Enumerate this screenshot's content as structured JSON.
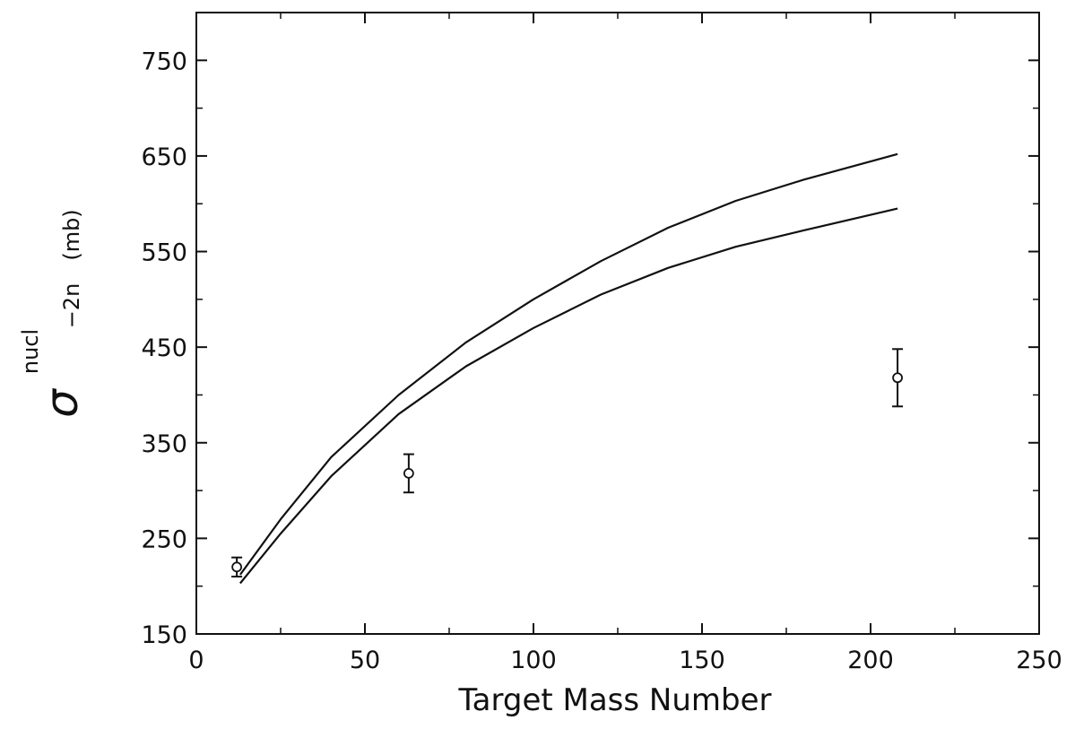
{
  "chart_data": {
    "type": "line",
    "title": "",
    "xlabel": "Target Mass Number",
    "ylabel": {
      "symbol": "σ",
      "superscript": "nucl",
      "subscript": "−2n",
      "unit": "(mb)"
    },
    "xlim": [
      0,
      250
    ],
    "ylim": [
      150,
      800
    ],
    "xticks": [
      0,
      50,
      100,
      150,
      200,
      250
    ],
    "xtick_labels": [
      "0",
      "50",
      "100",
      "150",
      "200",
      "250"
    ],
    "yticks": [
      150,
      250,
      350,
      450,
      550,
      650,
      750
    ],
    "ytick_labels": [
      "150",
      "250",
      "350",
      "450",
      "550",
      "650",
      "750"
    ],
    "grid": false,
    "series": [
      {
        "kind": "line",
        "color": "#111111",
        "x": [
          13,
          25,
          40,
          60,
          80,
          100,
          120,
          140,
          160,
          180,
          208
        ],
        "y": [
          212,
          270,
          335,
          400,
          455,
          500,
          540,
          575,
          603,
          625,
          652
        ]
      },
      {
        "kind": "line",
        "color": "#111111",
        "x": [
          13,
          25,
          40,
          60,
          80,
          100,
          120,
          140,
          160,
          180,
          208
        ],
        "y": [
          203,
          255,
          315,
          380,
          430,
          470,
          505,
          533,
          555,
          572,
          595
        ]
      },
      {
        "kind": "scatter",
        "marker": "open-circle",
        "color": "#111111",
        "x": [
          12,
          63,
          208
        ],
        "y": [
          220,
          318,
          418
        ],
        "yerr": [
          10,
          20,
          30
        ]
      }
    ]
  }
}
